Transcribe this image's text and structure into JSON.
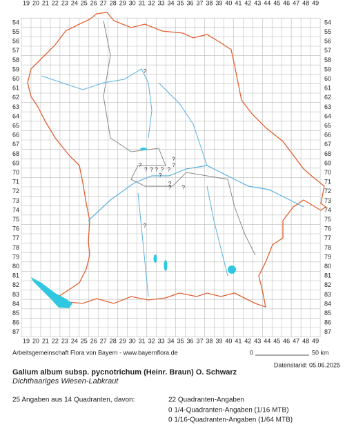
{
  "map": {
    "columns": [
      19,
      20,
      21,
      22,
      23,
      24,
      25,
      26,
      27,
      28,
      29,
      30,
      31,
      32,
      33,
      34,
      35,
      36,
      37,
      38,
      39,
      40,
      41,
      42,
      43,
      44,
      45,
      46,
      47,
      48,
      49
    ],
    "rows": [
      54,
      55,
      56,
      57,
      58,
      59,
      60,
      61,
      62,
      63,
      64,
      65,
      66,
      67,
      68,
      69,
      70,
      71,
      72,
      73,
      74,
      75,
      76,
      77,
      78,
      79,
      80,
      81,
      82,
      83,
      84,
      85,
      86,
      87
    ],
    "marks": [
      {
        "label": "?",
        "col": 31.3,
        "row": 59.2
      },
      {
        "label": "?",
        "col": 30.8,
        "row": 69.2
      },
      {
        "label": "?",
        "col": 34.3,
        "row": 68.6
      },
      {
        "label": "?",
        "col": 34.3,
        "row": 69.2
      },
      {
        "label": "?",
        "col": 31.4,
        "row": 69.7
      },
      {
        "label": "?",
        "col": 32.0,
        "row": 69.7
      },
      {
        "label": "?",
        "col": 32.5,
        "row": 69.7
      },
      {
        "label": "?",
        "col": 33.1,
        "row": 69.7
      },
      {
        "label": "?",
        "col": 33.8,
        "row": 69.7
      },
      {
        "label": "?",
        "col": 32.9,
        "row": 70.3
      },
      {
        "label": "?",
        "col": 33.9,
        "row": 71.2
      },
      {
        "label": "?",
        "col": 33.9,
        "row": 71.6
      },
      {
        "label": "?",
        "col": 35.3,
        "row": 71.6
      },
      {
        "label": "?",
        "col": 31.3,
        "row": 75.7
      }
    ]
  },
  "footer": {
    "credit": "Arbeitsgemeinschaft Flora von Bayern - www.bayernflora.de",
    "scale_start": "0",
    "scale_end": "50 km",
    "date": "Datenstand: 05.06.2025"
  },
  "header": {
    "title": "Galium album subsp. pycnotrichum (Heinr. Braun) O. Schwarz",
    "subtitle": "Dichthaariges Wiesen-Labkraut"
  },
  "stats": {
    "summary": "25 Angaben aus 14 Quadranten, davon:",
    "lines": [
      "22 Quadranten-Angaben",
      "0 1/4-Quadranten-Angaben (1/16 MTB)",
      "0 1/16-Quadranten-Angaben (1/64 MTB)"
    ]
  }
}
